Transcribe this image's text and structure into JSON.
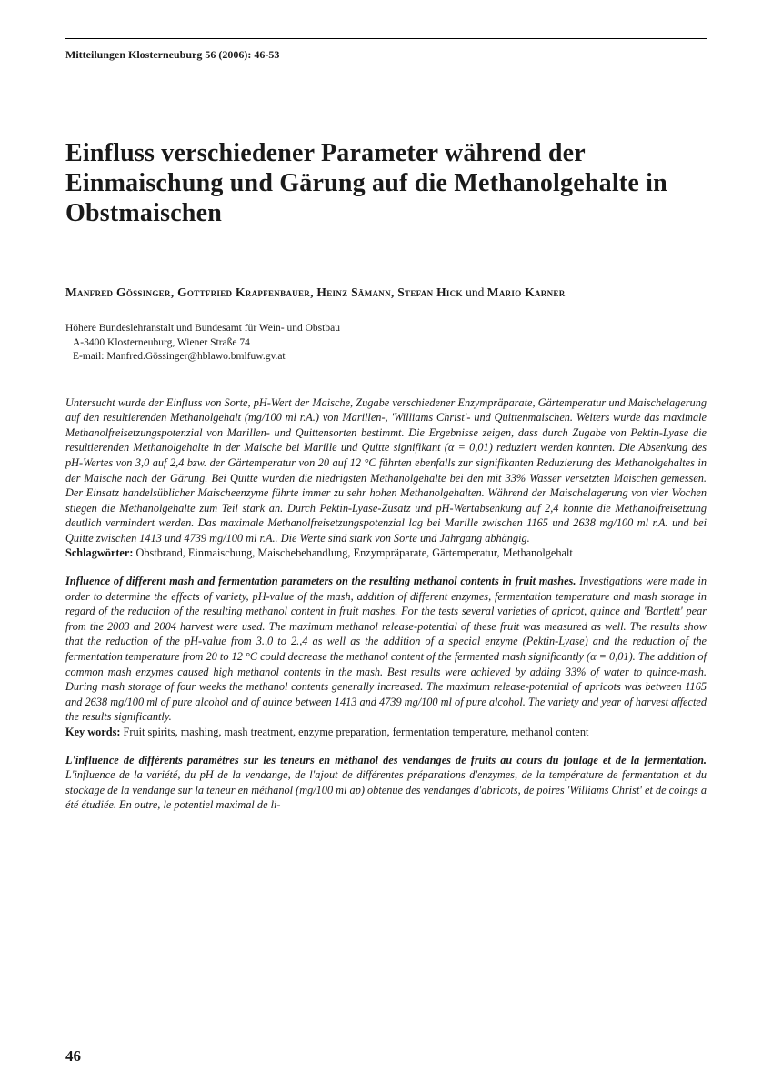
{
  "journal": {
    "header": "Mitteilungen Klosterneuburg 56 (2006): 46-53"
  },
  "title": "Einfluss verschiedener Parameter während der Einmaischung und Gärung auf die Methanolgehalte in Obstmaischen",
  "authors_line1": "Manfred Gössinger, Gottfried Krapfenbauer, Heinz Sämann, Stefan Hick",
  "authors_connector": " und ",
  "authors_line2": "Mario Karner",
  "affiliation": {
    "line1": "Höhere Bundeslehranstalt und Bundesamt für Wein- und Obstbau",
    "line2": "A-3400 Klosterneuburg, Wiener Straße 74",
    "line3": "E-mail: Manfred.Gössinger@hblawo.bmlfuw.gv.at"
  },
  "abstract_de": {
    "body": "Untersucht wurde der Einfluss von Sorte, pH-Wert der Maische, Zugabe verschiedener Enzympräparate, Gärtemperatur und Maischelagerung auf den resultierenden Methanolgehalt (mg/100 ml r.A.) von Marillen-, 'Williams Christ'- und Quittenmaischen. Weiters wurde das maximale Methanolfreisetzungspotenzial von Marillen- und Quittensorten bestimmt. Die Ergebnisse zeigen, dass durch Zugabe von Pektin-Lyase die resultierenden Methanolgehalte in der Maische bei Marille und Quitte signifikant (α = 0,01) reduziert werden konnten. Die Absenkung des pH-Wertes von 3,0 auf 2,4 bzw. der Gärtemperatur von 20 auf 12 °C führten ebenfalls zur signifikanten Reduzierung des Methanolgehaltes in der Maische nach der Gärung. Bei Quitte wurden die niedrigsten Methanolgehalte bei den mit 33% Wasser versetzten Maischen gemessen. Der Einsatz handelsüblicher Maischeenzyme führte immer zu sehr hohen Methanolgehalten. Während der Maischelagerung von vier Wochen stiegen die Methanolgehalte zum Teil stark an. Durch Pektin-Lyase-Zusatz und pH-Wertabsenkung auf 2,4 konnte die Methanolfreisetzung deutlich vermindert werden. Das maximale Methanolfreisetzungspotenzial lag bei Marille zwischen 1165 und 2638 mg/100 ml r.A. und bei Quitte zwischen 1413 und 4739 mg/100 ml r.A.. Die Werte sind stark von Sorte und Jahrgang abhängig.",
    "kw_label": "Schlagwörter:",
    "kw": " Obstbrand, Einmaischung, Maischebehandlung, Enzympräparate, Gärtemperatur, Methanolgehalt"
  },
  "abstract_en": {
    "heading": "Influence of different mash and fermentation parameters on the resulting methanol contents in fruit mashes.",
    "body": " Investigations were made in order to determine the effects of variety, pH-value of the mash, addition of different enzymes, fermentation temperature and mash storage in regard of the reduction of the resulting methanol content in fruit mashes. For the tests several varieties of apricot, quince and 'Bartlett' pear from the 2003 and 2004 harvest were used. The maximum methanol release-potential of these fruit was measured as well. The results show that the reduction of the pH-value from 3.,0 to 2.,4 as well as the addition of a special enzyme (Pektin-Lyase) and the reduction of the fermentation temperature from 20 to 12 °C could decrease the methanol content of the fermented mash significantly (α = 0,01). The addition of common mash enzymes caused high methanol contents in the mash. Best results were achieved by adding 33% of water to quince-mash. During mash storage of four weeks the methanol contents generally increased. The maximum release-potential of apricots was between 1165 and 2638 mg/100 ml of pure alcohol and of quince between 1413 and 4739 mg/100 ml of pure alcohol. The variety and year of harvest affected the results significantly.",
    "kw_label": "Key words:",
    "kw": " Fruit spirits, mashing, mash treatment, enzyme preparation, fermentation temperature, methanol content"
  },
  "abstract_fr": {
    "heading": "L'influence de différents paramètres sur les teneurs en méthanol des vendanges de fruits au cours du foulage et de la fermentation.",
    "body": " L'influence de la variété, du pH de la vendange, de l'ajout de différentes préparations d'enzymes, de la température de fermentation et du stockage de la vendange sur la teneur en méthanol (mg/100 ml ap) obtenue des vendanges d'abricots, de poires 'Williams Christ' et de coings a été étudiée. En outre, le potentiel maximal de li-"
  },
  "page_number": "46"
}
